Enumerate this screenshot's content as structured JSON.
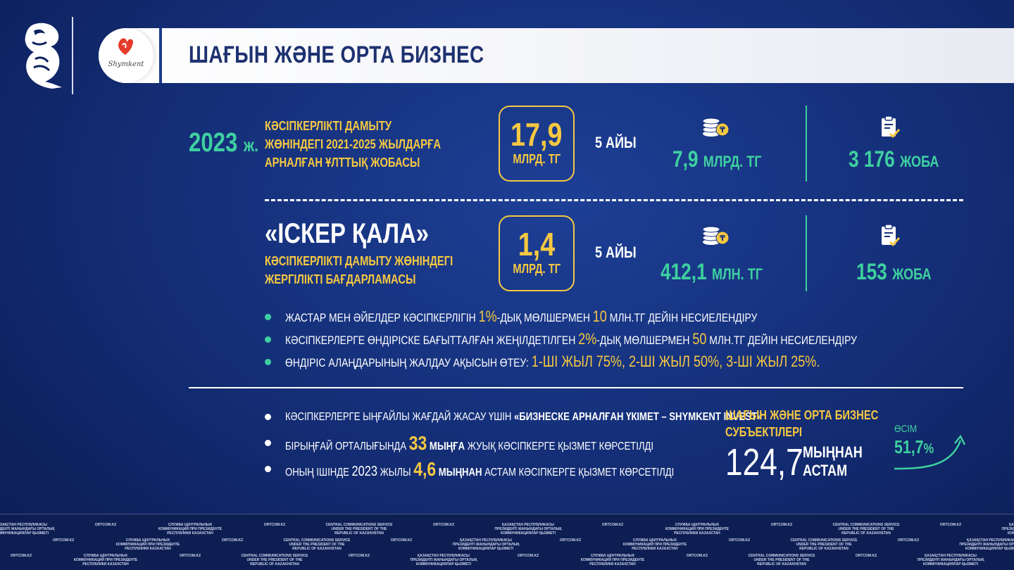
{
  "header": {
    "title": "ШАҒЫН ЖӘНЕ ОРТА БИЗНЕС",
    "logo_text": "Shymkent"
  },
  "section_national": {
    "year": "2023",
    "year_suffix": "ж.",
    "title_lines": [
      "КӘСІПКЕРЛІКТІ ДАМЫТУ",
      "ЖӨНІНДЕГІ 2021-2025 ЖЫЛДАРҒА",
      "АРНАЛҒАН ҰЛТТЫҚ ЖОБАСЫ"
    ],
    "amount": "17,9",
    "amount_unit": "МЛРД. ТГ",
    "period": "5 АЙЫ",
    "funds_value": "7,9",
    "funds_unit": "МЛРД. ТГ",
    "projects_value": "3 176",
    "projects_unit": "ЖОБА"
  },
  "section_local": {
    "title": "«ІСКЕР ҚАЛА»",
    "subtitle_lines": [
      "КӘСІПКЕРЛІКТІ ДАМЫТУ ЖӨНІНДЕГІ",
      "ЖЕРГІЛІКТІ БАҒДАРЛАМАСЫ"
    ],
    "amount": "1,4",
    "amount_unit": "МЛРД. ТГ",
    "period": "5 АЙЫ",
    "funds_value": "412,1",
    "funds_unit": "МЛН. ТГ",
    "projects_value": "153",
    "projects_unit": "ЖОБА"
  },
  "bullets_green": [
    {
      "a": "ЖАСТАР МЕН ӘЙЕЛДЕР КӘСІПКЕРЛІГІН ",
      "h1": "1%",
      "b": "-ДЫҚ МӨЛШЕРМЕН ",
      "h2": "10",
      "c": " МЛН.ТГ ДЕЙІН НЕСИЕЛЕНДІРУ"
    },
    {
      "a": "КӘСІПКЕРЛЕРГЕ ӨНДІРІСКЕ БАҒЫТТАЛҒАН ЖЕҢІЛДЕТІЛГЕН ",
      "h1": "2%",
      "b": "-ДЫҚ МӨЛШЕРМЕН ",
      "h2": "50",
      "c": " МЛН.ТГ ДЕЙІН НЕСИЕЛЕНДІРУ"
    }
  ],
  "bullet_rent": {
    "a": "ӨНДІРІС АЛАҢДАРЫНЫҢ ЖАЛДАУ АҚЫСЫН ӨТЕУ:  ",
    "y1": "1-ШІ ЖЫЛ",
    "p1": " 75%, ",
    "y2": "2-ШІ ЖЫЛ",
    "p2": " 50%, ",
    "y3": "3-ШІ ЖЫЛ",
    "p3": " 25%."
  },
  "bullets_white": {
    "b1_a": "КӘСІПКЕРЛЕРГЕ ЫҢҒАЙЛЫ ЖАҒДАЙ ЖАСАУ ҮШІН ",
    "b1_b": "«БИЗНЕСКЕ АРНАЛҒАН ҮКІМЕТ – SHYMKENT INVEST»",
    "b2_a": "БІРЫҢҒАЙ ОРТАЛЫҒЫНДА ",
    "b2_h": "33",
    "b2_b": " МЫҢҒА",
    "b2_c": " ЖУЫҚ КӘСІПКЕРГЕ ҚЫЗМЕТ КӨРСЕТІЛДІ",
    "b3_a": "ОНЫҢ ІШІНДЕ ",
    "b3_year": "2023",
    "b3_b": " ЖЫЛЫ ",
    "b3_h": "4,6",
    "b3_c": " МЫҢНАН",
    "b3_d": " АСТАМ КӘСІПКЕРГЕ ҚЫЗМЕТ КӨРСЕТІЛДІ"
  },
  "sme": {
    "title_lines": [
      "ШАҒЫН ЖӘНЕ ОРТА БИЗНЕС",
      "СУБЪЕКТІЛЕРІ"
    ],
    "value": "124,7",
    "unit_lines": [
      "МЫҢНАН",
      "АСТАМ"
    ],
    "growth_label": "ӨСІМ",
    "growth_value": "51,7",
    "growth_unit": "%"
  },
  "footer": {
    "org_kz": "ҚАЗАҚСТАН РЕСПУБЛИКАСЫ ПРЕЗИДЕНТІ ЖАНЫНДАҒЫ ОРТАЛЫҚ КОММУНИКАЦИЯЛАР ҚЫЗМЕТІ",
    "org_ru": "СЛУЖБА ЦЕНТРАЛЬНЫХ КОММУНИКАЦИЙ ПРИ ПРЕЗИДЕНТЕ РЕСПУБЛИКИ КАЗАХСТАН",
    "org_en": "CENTRAL COMMUNICATIONS SERVICE UNDER THE PRESIDENT OF THE REPUBLIC OF KAZAKHSTAN",
    "site": "ORTCOM.KZ"
  }
}
